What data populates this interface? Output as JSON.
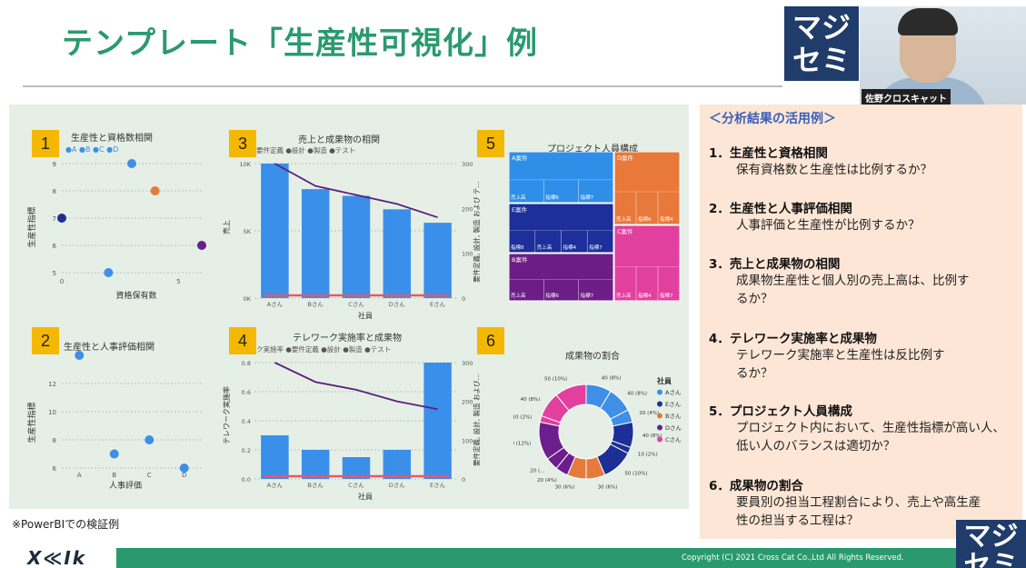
{
  "title": "テンプレート「生産性可視化」例",
  "logo": {
    "line1": "マジ",
    "line2": "セミ"
  },
  "presenter": "佐野クロスキャット",
  "note": "※PowerBIでの検証例",
  "copyright": "Copyright (C) 2021 Cross Cat Co.,Ltd All Rights Reserved.",
  "footer_logo": "X≪Ik",
  "charts": {
    "c1": {
      "num": "1",
      "title": "生産性と資格数相関",
      "legend": "●A ●B ●C ●D",
      "xlabel": "資格保有数",
      "ylabel": "生産性指標"
    },
    "c2": {
      "num": "2",
      "title": "生産性と人事評価相関",
      "xlabel": "人事評価",
      "ylabel": "生産性指標"
    },
    "c3": {
      "num": "3",
      "title": "売上と成果物の相関",
      "legend": "要件定義 ●設計 ●製造 ●テスト",
      "xlabel": "社員",
      "ylabel": "売上",
      "y2label": "要件定義, 設計, 製造 および テ…"
    },
    "c4": {
      "num": "4",
      "title": "テレワーク実施率と成果物",
      "legend": "ク実施率 ●要件定義 ●設計 ●製造 ●テスト",
      "xlabel": "社員",
      "ylabel": "テレワーク実施率",
      "y2label": "要件定義, 設計, 製造 および…"
    },
    "c5": {
      "num": "5",
      "title": "プロジェクト人員構成"
    },
    "c6": {
      "num": "6",
      "title": "成果物の割合",
      "legend_title": "社員"
    }
  },
  "chart_data": [
    {
      "type": "scatter",
      "title": "生産性と資格数相関",
      "xlabel": "資格保有数",
      "ylabel": "生産性指標",
      "xlim": [
        0,
        6
      ],
      "ylim": [
        5,
        9
      ],
      "yticks": [
        "9",
        "8",
        "7",
        "6",
        "5"
      ],
      "xticks": [
        "0",
        "5"
      ],
      "series": [
        {
          "name": "A",
          "color": "#3f8ee8",
          "points": [
            [
              3,
              9
            ],
            [
              2,
              5
            ]
          ]
        },
        {
          "name": "B",
          "color": "#1d2f96",
          "points": [
            [
              0,
              7
            ]
          ]
        },
        {
          "name": "C",
          "color": "#e67a3c",
          "points": [
            [
              4,
              8
            ]
          ]
        },
        {
          "name": "D",
          "color": "#6b1e8c",
          "points": [
            [
              6,
              6
            ]
          ]
        }
      ]
    },
    {
      "type": "scatter",
      "title": "生産性と人事評価相関",
      "xlabel": "人事評価",
      "ylabel": "生産性指標",
      "categories": [
        "A",
        "B",
        "C",
        "D"
      ],
      "ylim": [
        6,
        14
      ],
      "yticks": [
        "12",
        "10",
        "8",
        "6"
      ],
      "points": [
        [
          "A",
          14
        ],
        [
          "B",
          7
        ],
        [
          "C",
          8
        ],
        [
          "D",
          6
        ]
      ]
    },
    {
      "type": "bar",
      "title": "売上と成果物の相関",
      "categories": [
        "Aさん",
        "Bさん",
        "Cさん",
        "Dさん",
        "Eさん"
      ],
      "values": [
        10000,
        8100,
        7600,
        6600,
        5600
      ],
      "ylim": [
        0,
        10000
      ],
      "yticks": [
        "10K",
        "5K",
        "0K"
      ],
      "line": {
        "values": [
          300,
          250,
          230,
          210,
          180
        ],
        "ylim": [
          0,
          300
        ],
        "yticks": [
          "300",
          "200",
          "100",
          "0"
        ]
      }
    },
    {
      "type": "bar",
      "title": "テレワーク実施率と成果物",
      "categories": [
        "Aさん",
        "Bさん",
        "Cさん",
        "Dさん",
        "Eさん"
      ],
      "values": [
        0.3,
        0.2,
        0.15,
        0.2,
        0.8
      ],
      "ylim": [
        0,
        0.8
      ],
      "yticks": [
        "0.8",
        "0.6",
        "0.4",
        "0.2",
        "0.0"
      ],
      "line": {
        "values": [
          300,
          250,
          230,
          200,
          180
        ],
        "ylim": [
          0,
          300
        ],
        "yticks": [
          "300",
          "200",
          "100",
          "0"
        ]
      }
    },
    {
      "type": "treemap",
      "title": "プロジェクト人員構成",
      "groups": [
        {
          "name": "A案件",
          "color": "#2f8fe8",
          "items": [
            "売上高",
            "指標6",
            "指標7"
          ]
        },
        {
          "name": "E案件",
          "color": "#1c2f9a",
          "items": [
            "指標8",
            "売上高",
            "指標4",
            "指標7"
          ]
        },
        {
          "name": "B案件",
          "color": "#6c1e86",
          "items": [
            "売上高",
            "指標6",
            "指標7"
          ]
        },
        {
          "name": "D案件",
          "color": "#e8793a",
          "items": [
            "売上高",
            "指標6",
            "指標4"
          ]
        },
        {
          "name": "C案件",
          "color": "#e2409f",
          "items": [
            "売上高",
            "指標4",
            "指標7"
          ]
        }
      ]
    },
    {
      "type": "pie",
      "title": "成果物の割合",
      "legend": [
        "Aさん",
        "Eさん",
        "Bさん",
        "Dさん",
        "Cさん"
      ],
      "colors": [
        "#3f8ee8",
        "#1d2f96",
        "#e67a3c",
        "#6b1e8c",
        "#e2409f"
      ],
      "slices": [
        {
          "label": "40 (8%)",
          "value": 40,
          "color": "#3f8ee8"
        },
        {
          "label": "40 (8%)",
          "value": 40,
          "color": "#3f8ee8"
        },
        {
          "label": "20 (4%)",
          "value": 20,
          "color": "#3f8ee8"
        },
        {
          "label": "40 (8%)",
          "value": 40,
          "color": "#1d2f96"
        },
        {
          "label": "10 (2%)",
          "value": 10,
          "color": "#1d2f96"
        },
        {
          "label": "50 (10%)",
          "value": 50,
          "color": "#1d2f96"
        },
        {
          "label": "30 (6%)",
          "value": 30,
          "color": "#e67a3c"
        },
        {
          "label": "30 (6%)",
          "value": 30,
          "color": "#e67a3c"
        },
        {
          "label": "20 (4%)",
          "value": 20,
          "color": "#6b1e8c"
        },
        {
          "label": "20 (…",
          "value": 20,
          "color": "#6b1e8c"
        },
        {
          "label": "60 (12%)",
          "value": 60,
          "color": "#6b1e8c"
        },
        {
          "label": "10 (2%)",
          "value": 10,
          "color": "#e2409f"
        },
        {
          "label": "40 (8%)",
          "value": 40,
          "color": "#e2409f"
        },
        {
          "label": "50 (10%)",
          "value": 50,
          "color": "#e2409f"
        }
      ]
    }
  ],
  "side": {
    "header": "＜分析結果の活用例＞",
    "items": [
      {
        "h": "1．生産性と資格相関",
        "t": "保有資格数と生産性は比例するか？"
      },
      {
        "h": "2．生産性と人事評価相関",
        "t": "人事評価と生産性が比例するか？"
      },
      {
        "h": "3．売上と成果物の相関",
        "t": "成果物生産性と個人別の売上高は、比例するか？"
      },
      {
        "h": "4．テレワーク実施率と成果物",
        "t": "テレワーク実施率と生産性は反比例するか？"
      },
      {
        "h": "5．プロジェクト人員構成",
        "t": "プロジェクト内において、生産性指標が高い人、低い人のバランスは適切か？"
      },
      {
        "h": "6．成果物の割合",
        "t": "要員別の担当工程割合により、売上や高生産性の担当する工程は？"
      }
    ]
  }
}
